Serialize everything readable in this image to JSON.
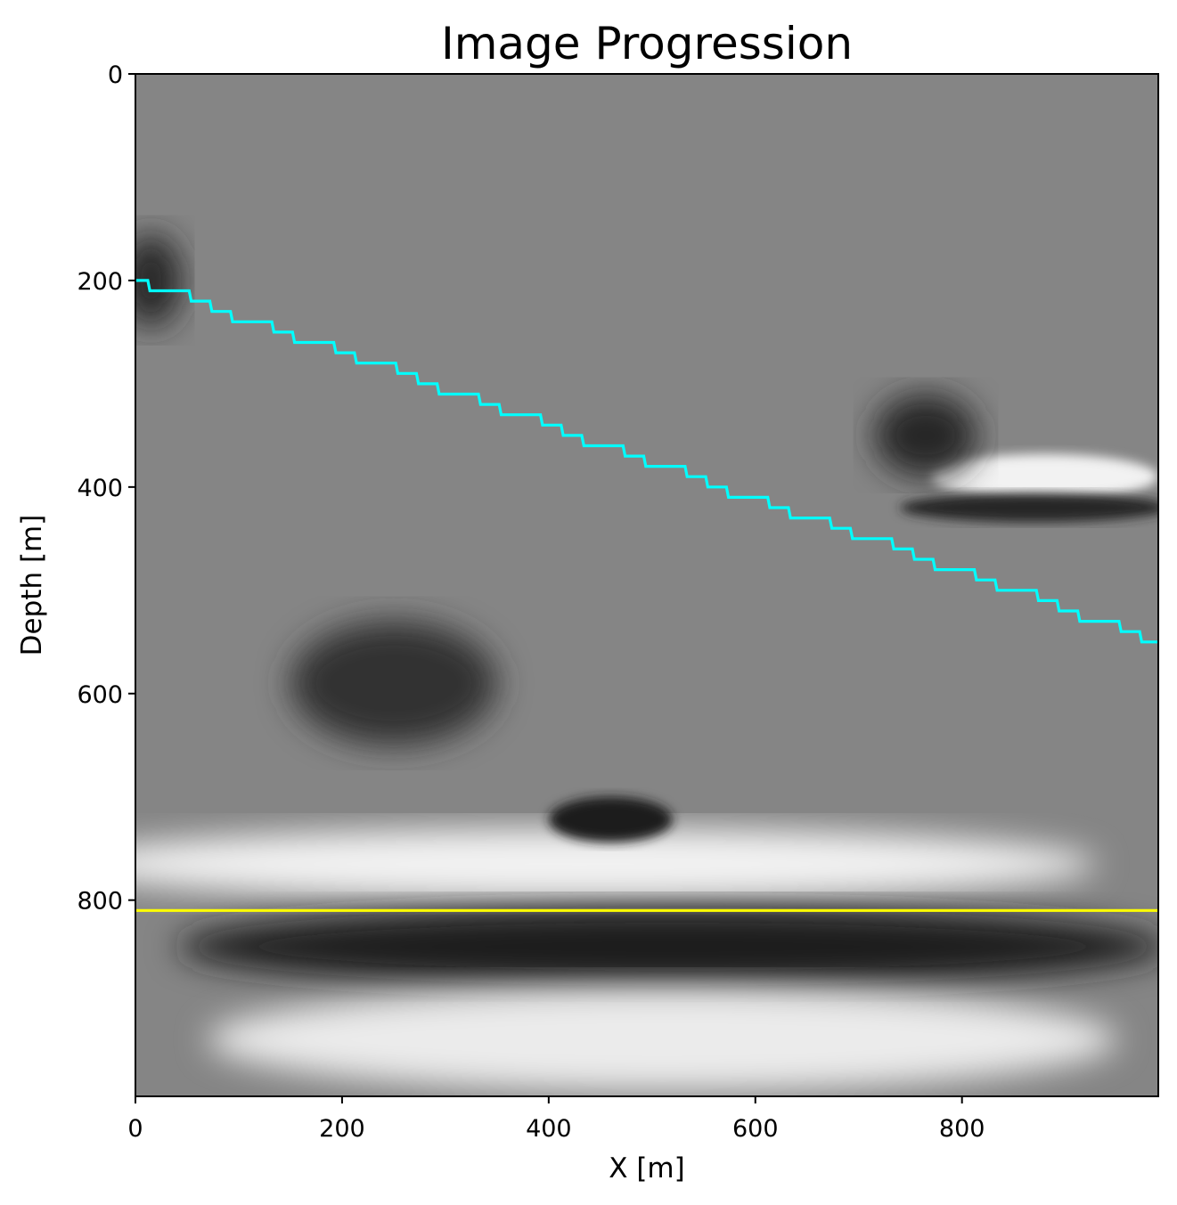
{
  "chart_data": {
    "type": "heatmap",
    "title": "Image Progression",
    "xlabel": "X [m]",
    "ylabel": "Depth [m]",
    "xlim": [
      0,
      990
    ],
    "ylim": [
      990,
      0
    ],
    "y_inverted": true,
    "xticks": [
      0,
      200,
      400,
      600,
      800
    ],
    "yticks": [
      0,
      200,
      400,
      600,
      800
    ],
    "colormap": "gray",
    "grid": false,
    "legend": "none",
    "colors": {
      "line_dipping": "#00ffff",
      "line_flat": "#ffff00"
    },
    "series": [
      {
        "style": "step",
        "color": "#00ffff",
        "x": [
          0,
          990
        ],
        "y": [
          200,
          550
        ],
        "step_x": 20,
        "step_y": 10
      },
      {
        "style": "line",
        "color": "#ffff00",
        "x": [
          0,
          990
        ],
        "y": [
          810,
          810
        ]
      }
    ],
    "image_features": [
      {
        "kind": "bright",
        "x": [
          0,
          930
        ],
        "y": [
          730,
          800
        ],
        "cx": 430,
        "cy": 765,
        "rx": 500,
        "ry": 35,
        "level": 0.95
      },
      {
        "kind": "dark",
        "x": [
          80,
          960
        ],
        "y": [
          810,
          880
        ],
        "cx": 520,
        "cy": 845,
        "rx": 480,
        "ry": 38,
        "level": 0.1
      },
      {
        "kind": "bright",
        "x": [
          150,
          920
        ],
        "y": [
          880,
          980
        ],
        "cx": 510,
        "cy": 935,
        "rx": 440,
        "ry": 50,
        "level": 0.92
      },
      {
        "kind": "dark",
        "x": [
          170,
          320
        ],
        "y": [
          530,
          640
        ],
        "cx": 250,
        "cy": 590,
        "rx": 100,
        "ry": 60,
        "level": 0.2
      },
      {
        "kind": "dark",
        "x": [
          410,
          520
        ],
        "y": [
          700,
          740
        ],
        "cx": 460,
        "cy": 722,
        "rx": 60,
        "ry": 22,
        "level": 0.1
      },
      {
        "kind": "dark",
        "x": [
          0,
          50
        ],
        "y": [
          160,
          240
        ],
        "cx": 15,
        "cy": 200,
        "rx": 30,
        "ry": 45,
        "level": 0.15
      },
      {
        "kind": "bright",
        "x": [
          780,
          990
        ],
        "y": [
          360,
          420
        ],
        "cx": 880,
        "cy": 390,
        "rx": 110,
        "ry": 22,
        "level": 0.95
      },
      {
        "kind": "dark",
        "x": [
          730,
          990
        ],
        "y": [
          400,
          440
        ],
        "cx": 870,
        "cy": 420,
        "rx": 130,
        "ry": 14,
        "level": 0.15
      },
      {
        "kind": "dark",
        "x": [
          720,
          820
        ],
        "y": [
          320,
          380
        ],
        "cx": 765,
        "cy": 350,
        "rx": 50,
        "ry": 40,
        "level": 0.15
      }
    ]
  }
}
